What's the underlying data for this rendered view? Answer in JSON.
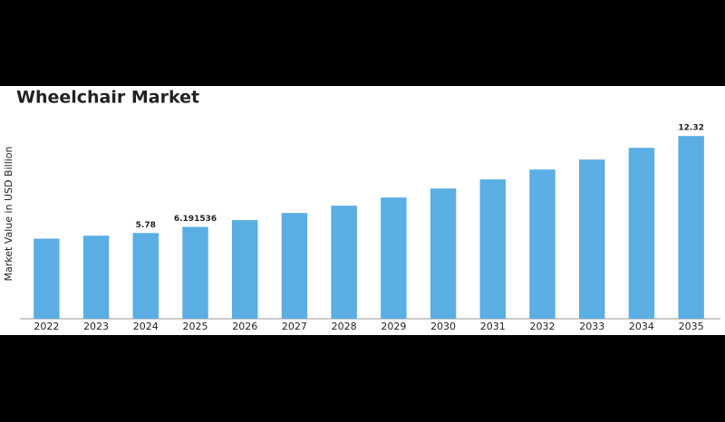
{
  "chart_data": {
    "type": "bar",
    "title": "Wheelchair Market",
    "y_label": "Market Value in USD Billion",
    "categories": [
      "2022",
      "2023",
      "2024",
      "2025",
      "2026",
      "2027",
      "2028",
      "2029",
      "2030",
      "2031",
      "2032",
      "2033",
      "2034",
      "2035"
    ],
    "values": [
      5.4,
      5.6,
      5.78,
      6.191536,
      6.65,
      7.13,
      7.62,
      8.17,
      8.78,
      9.39,
      10.06,
      10.73,
      11.52,
      12.32
    ],
    "value_labels": [
      null,
      null,
      "5.78",
      "6.191536",
      null,
      null,
      null,
      null,
      null,
      null,
      null,
      null,
      null,
      "12.32"
    ],
    "color": "#5aaee3",
    "ylim": [
      0,
      13
    ]
  }
}
